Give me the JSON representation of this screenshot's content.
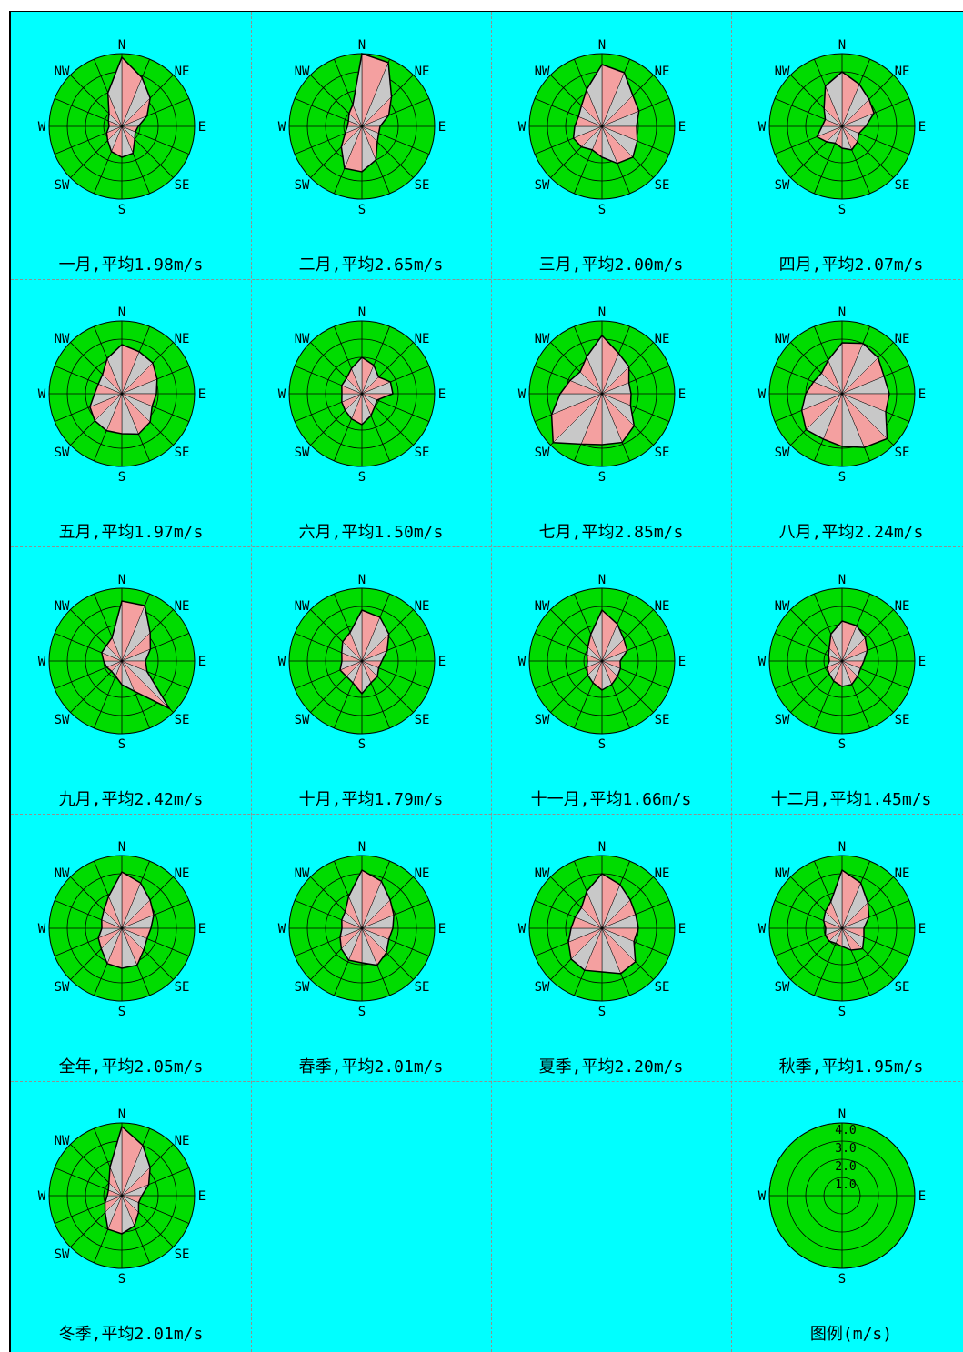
{
  "chart_data": [
    {
      "type": "wind-rose",
      "title": "一月,平均1.98m/s",
      "directions": [
        "N",
        "NNE",
        "NE",
        "ENE",
        "E",
        "ESE",
        "SE",
        "SSE",
        "S",
        "SSW",
        "SW",
        "WSW",
        "W",
        "WNW",
        "NW",
        "NNW"
      ],
      "values": [
        3.8,
        2.9,
        2.2,
        1.5,
        0.9,
        0.8,
        1.0,
        1.6,
        1.7,
        1.5,
        1.1,
        0.9,
        0.7,
        0.8,
        1.0,
        2.0
      ]
    },
    {
      "type": "wind-rose",
      "title": "二月,平均2.65m/s",
      "directions": [
        "N",
        "NNE",
        "NE",
        "ENE",
        "E",
        "ESE",
        "SE",
        "SSE",
        "S",
        "SSW",
        "SW",
        "WSW",
        "W",
        "WNW",
        "NW",
        "NNW"
      ],
      "values": [
        4.0,
        3.8,
        2.3,
        1.6,
        1.0,
        1.0,
        1.2,
        2.0,
        2.5,
        2.5,
        1.6,
        1.0,
        0.8,
        0.8,
        1.0,
        1.3
      ]
    },
    {
      "type": "wind-rose",
      "title": "三月,平均2.00m/s",
      "directions": [
        "N",
        "NNE",
        "NE",
        "ENE",
        "E",
        "ESE",
        "SE",
        "SSE",
        "S",
        "SSW",
        "SW",
        "WSW",
        "W",
        "WNW",
        "NW",
        "NNW"
      ],
      "values": [
        3.4,
        3.2,
        2.4,
        2.2,
        1.9,
        2.1,
        2.4,
        2.2,
        1.7,
        1.4,
        1.6,
        1.7,
        1.5,
        1.4,
        1.6,
        2.2
      ]
    },
    {
      "type": "wind-rose",
      "title": "四月,平均2.07m/s",
      "directions": [
        "N",
        "NNE",
        "NE",
        "ENE",
        "E",
        "ESE",
        "SE",
        "SSE",
        "S",
        "SSW",
        "SW",
        "WSW",
        "W",
        "WNW",
        "NW",
        "NNW"
      ],
      "values": [
        3.0,
        2.5,
        2.1,
        1.9,
        1.3,
        1.0,
        1.2,
        1.4,
        1.2,
        1.0,
        1.2,
        1.5,
        1.1,
        1.0,
        1.4,
        2.4
      ]
    },
    {
      "type": "wind-rose",
      "title": "五月,平均1.97m/s",
      "directions": [
        "N",
        "NNE",
        "NE",
        "ENE",
        "E",
        "ESE",
        "SE",
        "SSE",
        "S",
        "SSW",
        "SW",
        "WSW",
        "W",
        "WNW",
        "NW",
        "NNW"
      ],
      "values": [
        2.7,
        2.5,
        2.4,
        2.1,
        1.9,
        1.8,
        2.2,
        2.4,
        2.2,
        2.2,
        2.1,
        1.9,
        1.5,
        1.4,
        1.5,
        2.1
      ]
    },
    {
      "type": "wind-rose",
      "title": "六月,平均1.50m/s",
      "directions": [
        "N",
        "NNE",
        "NE",
        "ENE",
        "E",
        "ESE",
        "SE",
        "SSE",
        "S",
        "SSW",
        "SW",
        "WSW",
        "W",
        "WNW",
        "NW",
        "NNW"
      ],
      "values": [
        2.0,
        1.7,
        1.3,
        1.7,
        1.7,
        0.9,
        1.0,
        1.3,
        1.7,
        1.5,
        1.3,
        1.2,
        1.1,
        1.2,
        1.2,
        1.5
      ]
    },
    {
      "type": "wind-rose",
      "title": "七月,平均2.85m/s",
      "directions": [
        "N",
        "NNE",
        "NE",
        "ENE",
        "E",
        "ESE",
        "SE",
        "SSE",
        "S",
        "SSW",
        "SW",
        "WSW",
        "W",
        "WNW",
        "NW",
        "NNW"
      ],
      "values": [
        3.2,
        2.4,
        2.1,
        1.6,
        1.6,
        1.7,
        2.5,
        2.9,
        2.8,
        3.0,
        3.8,
        3.0,
        2.3,
        1.9,
        1.7,
        2.2
      ]
    },
    {
      "type": "wind-rose",
      "title": "八月,平均2.24m/s",
      "directions": [
        "N",
        "NNE",
        "NE",
        "ENE",
        "E",
        "ESE",
        "SE",
        "SSE",
        "S",
        "SSW",
        "SW",
        "WSW",
        "W",
        "WNW",
        "NW",
        "NNW"
      ],
      "values": [
        2.8,
        3.0,
        2.8,
        2.5,
        2.6,
        2.6,
        3.5,
        3.2,
        2.9,
        2.7,
        2.8,
        2.4,
        2.0,
        1.7,
        1.6,
        2.0
      ]
    },
    {
      "type": "wind-rose",
      "title": "九月,平均2.42m/s",
      "directions": [
        "N",
        "NNE",
        "NE",
        "ENE",
        "E",
        "ESE",
        "SE",
        "SSE",
        "S",
        "SSW",
        "SW",
        "WSW",
        "W",
        "WNW",
        "NW",
        "NNW"
      ],
      "values": [
        3.3,
        3.3,
        2.2,
        1.7,
        1.3,
        1.5,
        3.7,
        1.8,
        1.3,
        0.9,
        0.8,
        0.9,
        1.0,
        1.2,
        1.2,
        1.4
      ]
    },
    {
      "type": "wind-rose",
      "title": "十月,平均1.79m/s",
      "directions": [
        "N",
        "NNE",
        "NE",
        "ENE",
        "E",
        "ESE",
        "SE",
        "SSE",
        "S",
        "SSW",
        "SW",
        "WSW",
        "W",
        "WNW",
        "NW",
        "NNW"
      ],
      "values": [
        2.8,
        2.6,
        2.1,
        1.5,
        1.1,
        1.0,
        1.2,
        1.3,
        1.8,
        1.3,
        1.2,
        1.3,
        1.1,
        1.2,
        1.5,
        1.7
      ]
    },
    {
      "type": "wind-rose",
      "title": "十一月,平均1.66m/s",
      "directions": [
        "N",
        "NNE",
        "NE",
        "ENE",
        "E",
        "ESE",
        "SE",
        "SSE",
        "S",
        "SSW",
        "SW",
        "WSW",
        "W",
        "WNW",
        "NW",
        "NNW"
      ],
      "values": [
        2.8,
        2.2,
        1.7,
        1.5,
        1.0,
        1.1,
        1.2,
        1.4,
        1.6,
        1.3,
        1.1,
        0.9,
        0.8,
        0.9,
        1.1,
        1.6
      ]
    },
    {
      "type": "wind-rose",
      "title": "十二月,平均1.45m/s",
      "directions": [
        "N",
        "NNE",
        "NE",
        "ENE",
        "E",
        "ESE",
        "SE",
        "SSE",
        "S",
        "SSW",
        "SW",
        "WSW",
        "W",
        "WNW",
        "NW",
        "NNW"
      ],
      "values": [
        2.2,
        2.1,
        1.8,
        1.5,
        1.2,
        1.1,
        1.2,
        1.4,
        1.4,
        1.2,
        1.0,
        0.9,
        0.7,
        0.8,
        1.0,
        1.6
      ]
    },
    {
      "type": "wind-rose",
      "title": "全年,平均2.05m/s",
      "directions": [
        "N",
        "NNE",
        "NE",
        "ENE",
        "E",
        "ESE",
        "SE",
        "SSE",
        "S",
        "SSW",
        "SW",
        "WSW",
        "W",
        "WNW",
        "NW",
        "NNW"
      ],
      "values": [
        3.1,
        2.7,
        2.2,
        1.9,
        1.6,
        1.5,
        1.7,
        2.2,
        2.2,
        2.1,
        1.6,
        1.4,
        1.1,
        1.2,
        1.4,
        1.9
      ]
    },
    {
      "type": "wind-rose",
      "title": "春季,平均2.01m/s",
      "directions": [
        "N",
        "NNE",
        "NE",
        "ENE",
        "E",
        "ESE",
        "SE",
        "SSE",
        "S",
        "SSW",
        "SW",
        "WSW",
        "W",
        "WNW",
        "NW",
        "NNW"
      ],
      "values": [
        3.2,
        2.8,
        2.2,
        1.9,
        1.7,
        1.6,
        1.9,
        2.2,
        1.9,
        1.9,
        1.6,
        1.3,
        1.1,
        1.2,
        1.3,
        1.9
      ]
    },
    {
      "type": "wind-rose",
      "title": "夏季,平均2.20m/s",
      "directions": [
        "N",
        "NNE",
        "NE",
        "ENE",
        "E",
        "ESE",
        "SE",
        "SSE",
        "S",
        "SSW",
        "SW",
        "WSW",
        "W",
        "WNW",
        "NW",
        "NNW"
      ],
      "values": [
        3.0,
        2.6,
        2.2,
        2.0,
        2.0,
        1.9,
        2.6,
        2.7,
        2.4,
        2.5,
        2.4,
        2.0,
        1.7,
        1.6,
        1.6,
        2.2
      ]
    },
    {
      "type": "wind-rose",
      "title": "秋季,平均1.95m/s",
      "directions": [
        "N",
        "NNE",
        "NE",
        "ENE",
        "E",
        "ESE",
        "SE",
        "SSE",
        "S",
        "SSW",
        "SW",
        "WSW",
        "W",
        "WNW",
        "NW",
        "NNW"
      ],
      "values": [
        3.2,
        2.7,
        2.0,
        1.6,
        1.2,
        1.3,
        1.6,
        1.3,
        1.0,
        0.9,
        1.0,
        1.0,
        0.9,
        1.1,
        1.3,
        1.6
      ]
    },
    {
      "type": "wind-rose",
      "title": "冬季,平均2.01m/s",
      "directions": [
        "N",
        "NNE",
        "NE",
        "ENE",
        "E",
        "ESE",
        "SE",
        "SSE",
        "S",
        "SSW",
        "SW",
        "WSW",
        "W",
        "WNW",
        "NW",
        "NNW"
      ],
      "values": [
        3.8,
        3.0,
        2.2,
        1.6,
        1.1,
        1.0,
        1.3,
        1.8,
        2.1,
        2.0,
        1.3,
        1.0,
        0.8,
        0.8,
        1.0,
        1.7
      ]
    }
  ],
  "compass_labels": {
    "N": "N",
    "NE": "NE",
    "E": "E",
    "SE": "SE",
    "S": "S",
    "SW": "SW",
    "W": "W",
    "NW": "NW"
  },
  "legend": {
    "caption": "图例(m/s)",
    "rings": [
      1.0,
      2.0,
      3.0,
      4.0
    ],
    "ring_labels": [
      "1.0",
      "2.0",
      "3.0",
      "4.0"
    ],
    "max": 4.0,
    "compass_labels": {
      "N": "N",
      "E": "E",
      "S": "S",
      "W": "W"
    }
  },
  "colors": {
    "background": "#00ffff",
    "disc": "#00dc00",
    "petal_primary": "#f4a0a0",
    "petal_secondary": "#c8c8c8",
    "outline": "#000000"
  }
}
